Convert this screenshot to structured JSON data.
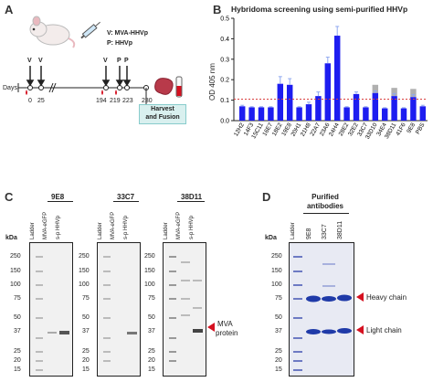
{
  "panels": {
    "a": "A",
    "b": "B",
    "c": "C",
    "d": "D"
  },
  "panel_a": {
    "legend_v": "V: MVA-HHVp",
    "legend_p": "P: HHVp",
    "days_label": "Days",
    "day_ticks": [
      "0",
      "25",
      "194",
      "219",
      "223",
      "230"
    ],
    "top_letters": [
      "V",
      "V",
      "V",
      "P",
      "P"
    ],
    "harvest_line1": "Harvest",
    "harvest_line2": "and Fusion"
  },
  "panel_c": {
    "kda": "kDa",
    "lane_labels": [
      "Ladder",
      "MVA-eGFP",
      "s-p HHVp"
    ],
    "blots": [
      "9E8",
      "33C7",
      "38D11"
    ],
    "markers": [
      "250",
      "150",
      "100",
      "75",
      "50",
      "37",
      "25",
      "20",
      "15"
    ],
    "mva_label_1": "MVA",
    "mva_label_2": "protein"
  },
  "panel_d": {
    "title_1": "Purified",
    "title_2": "antibodies",
    "kda": "kDa",
    "lanes": [
      "Ladder",
      "9E8",
      "33C7",
      "38D11"
    ],
    "markers": [
      "250",
      "150",
      "100",
      "75",
      "50",
      "37",
      "25",
      "20",
      "15"
    ],
    "heavy_chain": "Heavy chain",
    "light_chain": "Light chain"
  },
  "chart_data": {
    "type": "bar",
    "title": "Hybridoma screening using semi-purified HHVp",
    "ylabel": "OD 405 nm",
    "ylim": [
      0,
      0.5
    ],
    "yticks": [
      "0.0",
      "0.1",
      "0.2",
      "0.3",
      "0.4",
      "0.5"
    ],
    "categories": [
      "12H2",
      "14F3",
      "15C11",
      "16E7",
      "18E2",
      "19E8",
      "20H1",
      "21H8",
      "22A7",
      "23A6",
      "24H4",
      "28E2",
      "32E2",
      "33C7",
      "33D10",
      "34E4",
      "38D11",
      "41F6",
      "9E8",
      "PBS"
    ],
    "values": [
      0.07,
      0.065,
      0.065,
      0.065,
      0.18,
      0.175,
      0.065,
      0.08,
      0.12,
      0.28,
      0.415,
      0.065,
      0.13,
      0.065,
      0.135,
      0.06,
      0.12,
      0.06,
      0.115,
      0.07
    ],
    "errors": [
      0.005,
      0.003,
      0.003,
      0.003,
      0.035,
      0.03,
      0.003,
      0.01,
      0.02,
      0.03,
      0.045,
      0.003,
      0.01,
      0.003,
      0.01,
      0.003,
      0.012,
      0.003,
      0.012,
      0.005
    ],
    "grey_overlay": [
      0,
      0,
      0,
      0,
      0,
      0,
      0,
      0,
      0,
      0,
      0,
      0,
      0,
      0,
      0.04,
      0,
      0.04,
      0,
      0.04,
      0
    ],
    "cutoff": 0.105,
    "bar_color": "#1d1df0",
    "overlay_color": "#b0b0b0",
    "cutoff_color": "#d94040"
  }
}
